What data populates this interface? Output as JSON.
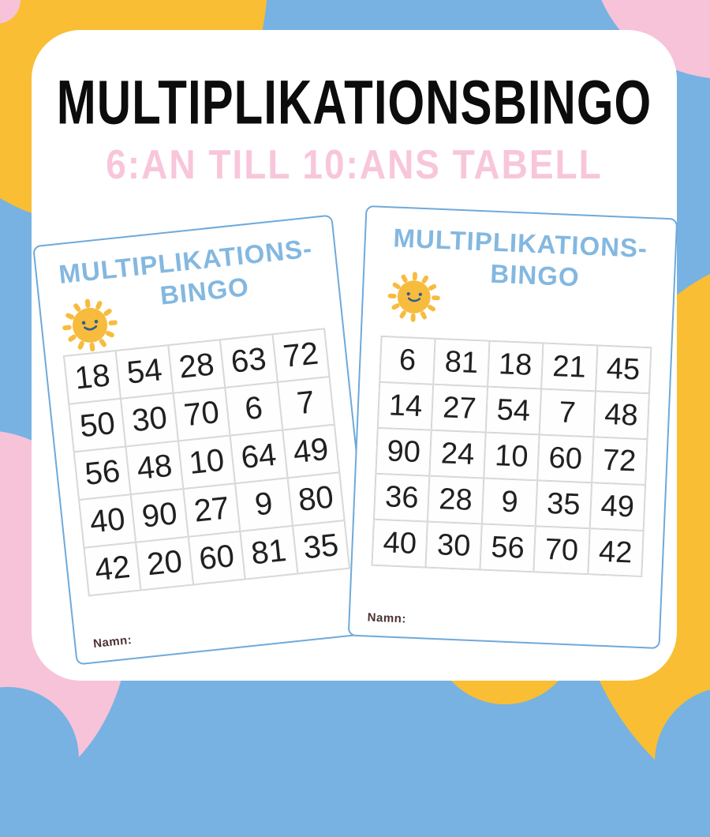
{
  "page": {
    "title": "MULTIPLIKATIONSBINGO",
    "subtitle": "6:AN TILL 10:ANS TABELL"
  },
  "cards": [
    {
      "position": "left",
      "title_line1": "MULTIPLIKATIONS-",
      "title_line2": "BINGO",
      "name_label": "Namn:",
      "grid": [
        [
          18,
          54,
          28,
          63,
          72
        ],
        [
          50,
          30,
          70,
          6,
          7
        ],
        [
          56,
          48,
          10,
          64,
          49
        ],
        [
          40,
          90,
          27,
          9,
          80
        ],
        [
          42,
          20,
          60,
          81,
          35
        ]
      ]
    },
    {
      "position": "right",
      "title_line1": "MULTIPLIKATIONS-",
      "title_line2": "BINGO",
      "name_label": "Namn:",
      "grid": [
        [
          6,
          81,
          18,
          21,
          45
        ],
        [
          14,
          27,
          54,
          7,
          48
        ],
        [
          90,
          24,
          10,
          60,
          72
        ],
        [
          36,
          28,
          9,
          35,
          49
        ],
        [
          40,
          30,
          56,
          70,
          42
        ]
      ]
    }
  ],
  "icons": [
    {
      "name": "sun-icon",
      "description": "smiling sun with rays"
    }
  ],
  "colors": {
    "background_blue": "#77B2E2",
    "background_pink": "#F7C3D8",
    "background_yellow": "#F9BE34",
    "headline_black": "#0C0C0C",
    "subtitle_pink": "#F8C6DA",
    "card_border_blue": "#6FA9DB",
    "card_title_blue": "#83B8E0",
    "grid_line_gray": "#D5D5D5",
    "number_black": "#202020",
    "name_label_brown": "#4A3330",
    "sun_yellow": "#F7BC3D",
    "sun_face_blue": "#2E5F8F"
  }
}
